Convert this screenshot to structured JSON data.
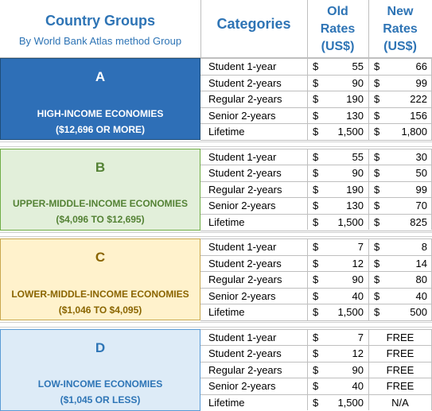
{
  "header": {
    "title": "Country Groups",
    "subtitle": "By World Bank Atlas method Group",
    "categories": "Categories",
    "old_rates": [
      "Old",
      "Rates",
      "(US$)"
    ],
    "new_rates": [
      "New",
      "Rates",
      "(US$)"
    ]
  },
  "currency_symbol": "$",
  "groups": [
    {
      "letter": "A",
      "name": "HIGH-INCOME ECONOMIES",
      "range": "($12,696 OR MORE)",
      "rows": [
        {
          "category": "Student 1-year",
          "old": "55",
          "new": "66"
        },
        {
          "category": "Student 2-years",
          "old": "90",
          "new": "99"
        },
        {
          "category": "Regular 2-years",
          "old": "190",
          "new": "222"
        },
        {
          "category": "Senior 2-years",
          "old": "130",
          "new": "156"
        },
        {
          "category": "Lifetime",
          "old": "1,500",
          "new": "1,800"
        }
      ]
    },
    {
      "letter": "B",
      "name": "UPPER-MIDDLE-INCOME ECONOMIES",
      "range": "($4,096 TO $12,695)",
      "rows": [
        {
          "category": "Student 1-year",
          "old": "55",
          "new": "30"
        },
        {
          "category": "Student 2-years",
          "old": "90",
          "new": "50"
        },
        {
          "category": "Regular 2-years",
          "old": "190",
          "new": "99"
        },
        {
          "category": "Senior 2-years",
          "old": "130",
          "new": "70"
        },
        {
          "category": "Lifetime",
          "old": "1,500",
          "new": "825"
        }
      ]
    },
    {
      "letter": "C",
      "name": "LOWER-MIDDLE-INCOME ECONOMIES",
      "range": "($1,046 TO $4,095)",
      "rows": [
        {
          "category": "Student 1-year",
          "old": "7",
          "new": "8"
        },
        {
          "category": "Student 2-years",
          "old": "12",
          "new": "14"
        },
        {
          "category": "Regular 2-years",
          "old": "90",
          "new": "80"
        },
        {
          "category": "Senior 2-years",
          "old": "40",
          "new": "40"
        },
        {
          "category": "Lifetime",
          "old": "1,500",
          "new": "500"
        }
      ]
    },
    {
      "letter": "D",
      "name": "LOW-INCOME ECONOMIES",
      "range": "($1,045 OR LESS)",
      "rows": [
        {
          "category": "Student 1-year",
          "old": "7",
          "new": "FREE"
        },
        {
          "category": "Student 2-years",
          "old": "12",
          "new": "FREE"
        },
        {
          "category": "Regular 2-years",
          "old": "90",
          "new": "FREE"
        },
        {
          "category": "Senior 2-years",
          "old": "40",
          "new": "FREE"
        },
        {
          "category": "Lifetime",
          "old": "1,500",
          "new": "N/A"
        }
      ]
    }
  ]
}
